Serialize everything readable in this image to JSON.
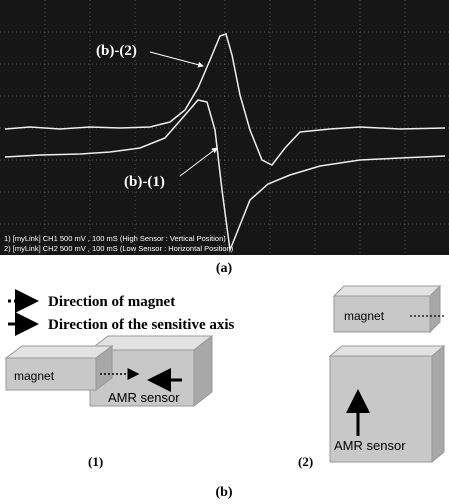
{
  "figure_a": {
    "trace_upper": "(b)-(2)",
    "trace_lower": "(b)-(1)",
    "footer": [
      "1) [myLink] CH1 500 mV , 100 mS (High Sensor : Vertical Position)",
      "2) [myLink] CH2 500 mV , 100 mS (Low Sensor : Horizontal Position)"
    ],
    "caption": "(a)"
  },
  "legend": {
    "magnet_direction": "Direction of magnet",
    "sensitive_axis": "Direction of the sensitive axis"
  },
  "panels": [
    {
      "magnet": "magnet",
      "sensor": "AMR sensor",
      "label": "(1)"
    },
    {
      "magnet": "magnet",
      "sensor": "AMR sensor",
      "label": "(2)"
    }
  ],
  "caption": "(b)"
}
